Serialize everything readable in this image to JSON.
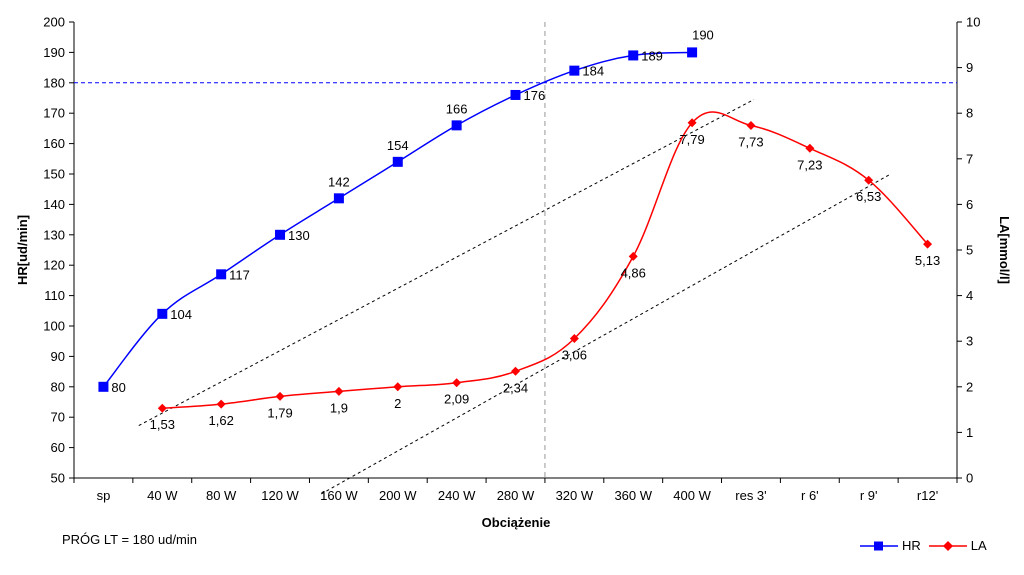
{
  "chart_data": {
    "type": "line",
    "categories": [
      "sp",
      "40 W",
      "80 W",
      "120 W",
      "160 W",
      "200 W",
      "240 W",
      "280 W",
      "320 W",
      "360 W",
      "400 W",
      "res 3'",
      "r 6'",
      "r 9'",
      "r12'"
    ],
    "series": [
      {
        "name": "HR",
        "axis": "left",
        "color": "#0000ff",
        "marker": "square",
        "values": [
          80,
          104,
          117,
          130,
          142,
          154,
          166,
          176,
          184,
          189,
          190,
          null,
          null,
          null,
          null
        ],
        "labels": [
          "80",
          "104",
          "117",
          "130",
          "142",
          "154",
          "166",
          "176",
          "184",
          "189",
          "190",
          null,
          null,
          null,
          null
        ]
      },
      {
        "name": "LA",
        "axis": "right",
        "color": "#ff0000",
        "marker": "diamond",
        "values": [
          null,
          1.53,
          1.62,
          1.79,
          1.9,
          2,
          2.09,
          2.34,
          3.06,
          4.86,
          7.79,
          7.73,
          7.23,
          6.53,
          5.13
        ],
        "labels": [
          null,
          "1,53",
          "1,62",
          "1,79",
          "1,9",
          "2",
          "2,09",
          "2,34",
          "3,06",
          "4,86",
          "7,79",
          "7,73",
          "7,23",
          "6,53",
          "5,13"
        ]
      }
    ],
    "xlabel": "Obciążenie",
    "ylabel": "HR[ud/min]",
    "y2label": "LA[mmol/l]",
    "ylim": [
      50,
      200
    ],
    "y2lim": [
      0,
      10
    ],
    "yticks": [
      "50",
      "60",
      "70",
      "80",
      "90",
      "100",
      "110",
      "120",
      "130",
      "140",
      "150",
      "160",
      "170",
      "180",
      "190",
      "200"
    ],
    "y2ticks": [
      "0",
      "1",
      "2",
      "3",
      "4",
      "5",
      "6",
      "7",
      "8",
      "9",
      "10"
    ],
    "threshold_hr": 180,
    "threshold_x_index": 7.5,
    "trend_lines": [
      {
        "from": {
          "x": 0.6,
          "y2": 1.15
        },
        "to": {
          "x": 11.05,
          "y2": 8.3
        }
      },
      {
        "from": {
          "x": 3.7,
          "y2": -0.35
        },
        "to": {
          "x": 13.35,
          "y2": 6.65
        }
      }
    ],
    "legend": "bottom-right",
    "grid": false
  },
  "note": "PRÓG LT = 180 ud/min",
  "legend_items": {
    "hr": "HR",
    "la": "LA"
  }
}
